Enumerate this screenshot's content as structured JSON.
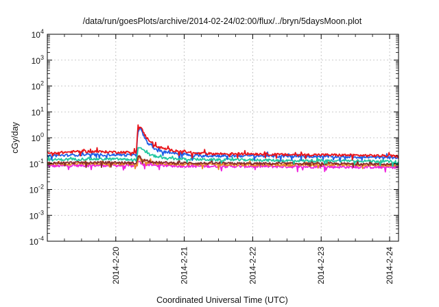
{
  "chart_data": {
    "type": "line",
    "title": "/data/run/goesPlots/archive/2014-02-24/02:00/flux/../bryn/5daysMoon.plot",
    "xlabel": "Coordinated Universal Time (UTC)",
    "ylabel": "cGy/day",
    "yscale": "log",
    "ylim_exp": [
      -4,
      4
    ],
    "y_tick_exponents": [
      -4,
      -3,
      -2,
      -1,
      0,
      1,
      2,
      3,
      4
    ],
    "y_tick_base": "10",
    "xlim": [
      19.0,
      24.13
    ],
    "x_ticks": [
      {
        "x": 20,
        "label": "2014-2-20"
      },
      {
        "x": 21,
        "label": "2014-2-21"
      },
      {
        "x": 22,
        "label": "2014-2-22"
      },
      {
        "x": 23,
        "label": "2014-2-23"
      },
      {
        "x": 24,
        "label": "2014-2-24"
      }
    ],
    "grid": true,
    "series": [
      {
        "color": "#e8141a",
        "keypoints": [
          [
            19.0,
            0.25
          ],
          [
            19.5,
            0.3
          ],
          [
            20.0,
            0.28
          ],
          [
            20.3,
            0.27
          ],
          [
            20.32,
            2.2
          ],
          [
            20.36,
            2.6
          ],
          [
            20.45,
            1.0
          ],
          [
            20.6,
            0.45
          ],
          [
            20.8,
            0.33
          ],
          [
            21.0,
            0.3
          ],
          [
            21.1,
            0.25
          ],
          [
            21.5,
            0.24
          ],
          [
            22.0,
            0.24
          ],
          [
            22.5,
            0.22
          ],
          [
            23.0,
            0.22
          ],
          [
            23.5,
            0.21
          ],
          [
            24.0,
            0.2
          ],
          [
            24.13,
            0.19
          ]
        ]
      },
      {
        "color": "#1e5ee6",
        "keypoints": [
          [
            19.0,
            0.2
          ],
          [
            19.5,
            0.22
          ],
          [
            20.0,
            0.22
          ],
          [
            20.3,
            0.21
          ],
          [
            20.32,
            1.8
          ],
          [
            20.36,
            2.2
          ],
          [
            20.45,
            0.7
          ],
          [
            20.6,
            0.32
          ],
          [
            20.8,
            0.26
          ],
          [
            21.0,
            0.24
          ],
          [
            21.1,
            0.2
          ],
          [
            21.5,
            0.2
          ],
          [
            22.0,
            0.2
          ],
          [
            22.5,
            0.19
          ],
          [
            23.0,
            0.19
          ],
          [
            23.5,
            0.18
          ],
          [
            24.0,
            0.17
          ],
          [
            24.13,
            0.17
          ]
        ]
      },
      {
        "color": "#22c7a0",
        "keypoints": [
          [
            19.0,
            0.14
          ],
          [
            19.5,
            0.15
          ],
          [
            20.0,
            0.15
          ],
          [
            20.3,
            0.14
          ],
          [
            20.33,
            0.45
          ],
          [
            20.38,
            0.35
          ],
          [
            20.5,
            0.22
          ],
          [
            20.7,
            0.16
          ],
          [
            21.0,
            0.15
          ],
          [
            21.5,
            0.14
          ],
          [
            22.0,
            0.14
          ],
          [
            22.5,
            0.13
          ],
          [
            23.0,
            0.13
          ],
          [
            23.5,
            0.13
          ],
          [
            24.0,
            0.12
          ],
          [
            24.13,
            0.12
          ]
        ]
      },
      {
        "color": "#8a2b2b",
        "keypoints": [
          [
            19.0,
            0.105
          ],
          [
            19.5,
            0.11
          ],
          [
            20.0,
            0.11
          ],
          [
            20.3,
            0.105
          ],
          [
            20.33,
            0.2
          ],
          [
            20.4,
            0.14
          ],
          [
            20.6,
            0.11
          ],
          [
            21.0,
            0.105
          ],
          [
            22.0,
            0.1
          ],
          [
            23.0,
            0.1
          ],
          [
            24.0,
            0.095
          ],
          [
            24.13,
            0.095
          ]
        ]
      },
      {
        "color": "#e88a2a",
        "keypoints": [
          [
            19.0,
            0.095
          ],
          [
            19.5,
            0.1
          ],
          [
            20.0,
            0.1
          ],
          [
            20.3,
            0.095
          ],
          [
            20.33,
            0.16
          ],
          [
            20.4,
            0.12
          ],
          [
            20.6,
            0.1
          ],
          [
            21.0,
            0.095
          ],
          [
            22.0,
            0.09
          ],
          [
            23.0,
            0.09
          ],
          [
            24.0,
            0.088
          ],
          [
            24.13,
            0.088
          ]
        ]
      },
      {
        "color": "#ee22dd",
        "keypoints": [
          [
            19.0,
            0.08
          ],
          [
            19.5,
            0.085
          ],
          [
            20.0,
            0.085
          ],
          [
            20.3,
            0.08
          ],
          [
            20.33,
            0.12
          ],
          [
            20.4,
            0.095
          ],
          [
            20.6,
            0.085
          ],
          [
            21.0,
            0.08
          ],
          [
            22.0,
            0.078
          ],
          [
            23.0,
            0.075
          ],
          [
            24.0,
            0.072
          ],
          [
            24.13,
            0.072
          ]
        ]
      }
    ]
  }
}
